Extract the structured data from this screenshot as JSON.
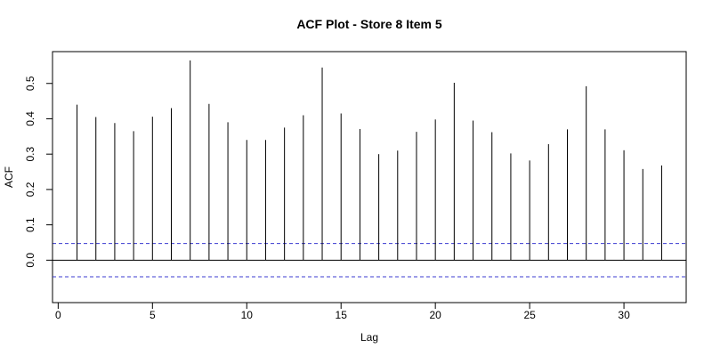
{
  "chart_data": {
    "type": "bar",
    "title": "ACF Plot - Store 8 Item 5",
    "xlabel": "Lag",
    "ylabel": "ACF",
    "xlim": [
      -0.3,
      33.3
    ],
    "ylim": [
      -0.12,
      0.59
    ],
    "xticks": [
      0,
      5,
      10,
      15,
      20,
      25,
      30
    ],
    "xtick_labels": [
      "0",
      "5",
      "10",
      "15",
      "20",
      "25",
      "30"
    ],
    "yticks": [
      0.0,
      0.1,
      0.2,
      0.3,
      0.4,
      0.5
    ],
    "ytick_labels": [
      "0.0",
      "0.1",
      "0.2",
      "0.3",
      "0.4",
      "0.5"
    ],
    "lags": [
      1,
      2,
      3,
      4,
      5,
      6,
      7,
      8,
      9,
      10,
      11,
      12,
      13,
      14,
      15,
      16,
      17,
      18,
      19,
      20,
      21,
      22,
      23,
      24,
      25,
      26,
      27,
      28,
      29,
      30,
      31,
      32
    ],
    "values": [
      0.44,
      0.405,
      0.388,
      0.365,
      0.406,
      0.43,
      0.565,
      0.442,
      0.39,
      0.34,
      0.34,
      0.375,
      0.41,
      0.545,
      0.415,
      0.371,
      0.3,
      0.31,
      0.363,
      0.398,
      0.502,
      0.395,
      0.362,
      0.302,
      0.282,
      0.328,
      0.37,
      0.492,
      0.37,
      0.311,
      0.258,
      0.268
    ],
    "confidence_bound": 0.047,
    "grid": false,
    "colors": {
      "bars": "#000000",
      "zero_line": "#000000",
      "ci_lines": "#3b3bd1",
      "frame": "#000000"
    }
  }
}
